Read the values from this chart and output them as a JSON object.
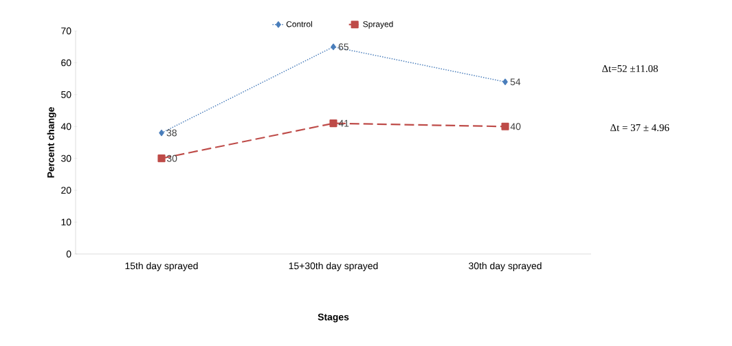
{
  "chart_data": {
    "type": "line",
    "xlabel": "Stages",
    "ylabel": "Percent change",
    "categories": [
      "15th day sprayed",
      "15+30th day sprayed",
      "30th day sprayed"
    ],
    "series": [
      {
        "name": "Control",
        "color": "#4a7ebb",
        "values": [
          38,
          65,
          54
        ],
        "marker": "diamond",
        "line_style": "dotted"
      },
      {
        "name": "Sprayed",
        "color": "#be4b48",
        "values": [
          30,
          41,
          40
        ],
        "marker": "square",
        "line_style": "dashed"
      }
    ],
    "ylim": [
      0,
      70
    ],
    "yticks": [
      0,
      10,
      20,
      30,
      40,
      50,
      60,
      70
    ],
    "data_labels": true,
    "legend": "top",
    "grid": false,
    "annotations": [
      "Δt=52 ±11.08",
      "Δt = 37 ± 4.96"
    ]
  }
}
